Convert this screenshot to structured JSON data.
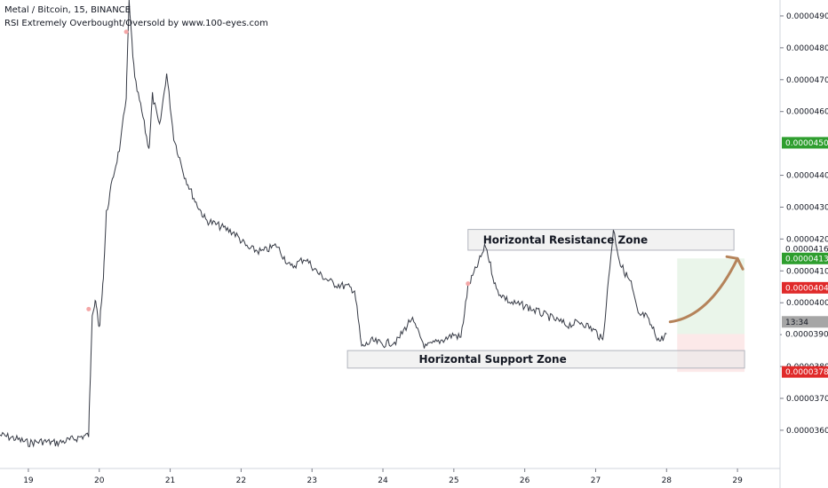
{
  "header": {
    "title": "Metal / Bitcoin, 15, BINANCE",
    "indicator": "RSI Extremely Overbought/Oversold by www.100-eyes.com"
  },
  "chart_data": {
    "type": "line",
    "title": "Metal / Bitcoin, 15, BINANCE",
    "x_ticks": [
      "19",
      "20",
      "21",
      "22",
      "23",
      "24",
      "25",
      "26",
      "27",
      "28",
      "29"
    ],
    "y_ticks": [
      "0.00003600",
      "0.00003700",
      "0.00003800",
      "0.00003900",
      "0.00004000",
      "0.00004100",
      "0.00004200",
      "0.00004300",
      "0.00004400",
      "0.00004600",
      "0.00004700",
      "0.00004800",
      "0.00004900"
    ],
    "ylim": [
      3.48e-05,
      4.95e-05
    ],
    "x": [
      18.6,
      18.8,
      19.0,
      19.2,
      19.4,
      19.6,
      19.75,
      19.85,
      19.9,
      19.95,
      20.0,
      20.05,
      20.1,
      20.2,
      20.3,
      20.38,
      20.42,
      20.5,
      20.6,
      20.7,
      20.75,
      20.85,
      20.95,
      21.05,
      21.2,
      21.35,
      21.5,
      21.7,
      21.9,
      22.1,
      22.3,
      22.5,
      22.7,
      22.9,
      23.1,
      23.3,
      23.5,
      23.6,
      23.7,
      23.85,
      24.0,
      24.2,
      24.4,
      24.6,
      24.8,
      25.0,
      25.1,
      25.2,
      25.3,
      25.45,
      25.6,
      25.8,
      26.0,
      26.2,
      26.4,
      26.6,
      26.8,
      27.0,
      27.1,
      27.25,
      27.35,
      27.5,
      27.6,
      27.7,
      27.8,
      27.9,
      28.0
    ],
    "y": [
      3.585e-05,
      3.575e-05,
      3.56e-05,
      3.565e-05,
      3.56e-05,
      3.57e-05,
      3.58e-05,
      3.585e-05,
      3.97e-05,
      4e-05,
      3.92e-05,
      4.05e-05,
      4.28e-05,
      4.4e-05,
      4.5e-05,
      4.65e-05,
      4.94e-05,
      4.7e-05,
      4.6e-05,
      4.48e-05,
      4.65e-05,
      4.55e-05,
      4.72e-05,
      4.52e-05,
      4.4e-05,
      4.32e-05,
      4.26e-05,
      4.24e-05,
      4.22e-05,
      4.17e-05,
      4.16e-05,
      4.18e-05,
      4.11e-05,
      4.14e-05,
      4.09e-05,
      4.06e-05,
      4.05e-05,
      4.04e-05,
      3.86e-05,
      3.88e-05,
      3.87e-05,
      3.88e-05,
      3.95e-05,
      3.86e-05,
      3.88e-05,
      3.9e-05,
      3.89e-05,
      4.05e-05,
      4.1e-05,
      4.18e-05,
      4.04e-05,
      4e-05,
      3.99e-05,
      3.97e-05,
      3.95e-05,
      3.93e-05,
      3.94e-05,
      3.91e-05,
      3.88e-05,
      4.23e-05,
      4.12e-05,
      4.06e-05,
      3.96e-05,
      3.96e-05,
      3.92e-05,
      3.88e-05,
      3.902e-05
    ],
    "price_tags": [
      {
        "label": "0.00004502",
        "value": 4.502e-05,
        "bg": "#2e9e2e",
        "fg": "#ffffff"
      },
      {
        "label": "0.00004169",
        "value": 4.169e-05,
        "bg": "#ffffff",
        "fg": "#131722"
      },
      {
        "label": "0.00004139",
        "value": 4.139e-05,
        "bg": "#2e9e2e",
        "fg": "#ffffff"
      },
      {
        "label": "0.00004047",
        "value": 4.047e-05,
        "bg": "#e02a2a",
        "fg": "#ffffff"
      },
      {
        "label": "13:34",
        "value": 3.94e-05,
        "bg": "#a6a6a6",
        "fg": "#131722"
      },
      {
        "label": "0.00003902",
        "value": 3.902e-05,
        "bg": "#ffffff",
        "fg": "#131722"
      },
      {
        "label": "0.00003783",
        "value": 3.783e-05,
        "bg": "#e02a2a",
        "fg": "#ffffff"
      }
    ],
    "annotations": [
      {
        "text": "Horizontal Resistance Zone",
        "x_from": 25.2,
        "x_to": 28.95,
        "y_from": 4.165e-05,
        "y_to": 4.23e-05
      },
      {
        "text": "Horizontal Support Zone",
        "x_from": 23.5,
        "x_to": 29.1,
        "y_from": 3.795e-05,
        "y_to": 3.85e-05
      }
    ],
    "position": {
      "x_from": 28.15,
      "x_to": 29.1,
      "target": 4.139e-05,
      "entry": 3.902e-05,
      "stop": 3.783e-05
    },
    "arrow": {
      "x": [
        28.05,
        28.6,
        29.0
      ],
      "y": [
        3.94e-05,
        4.08e-05,
        4.139e-05
      ]
    },
    "line_color": "#363a45",
    "colors": {
      "profit": "#2e9e2e",
      "loss": "#e02a2a",
      "arrow": "#b5835a"
    },
    "rsi_marks": [
      {
        "x": 19.85,
        "y": 3.98e-05
      },
      {
        "x": 20.38,
        "y": 4.85e-05
      },
      {
        "x": 25.2,
        "y": 4.06e-05
      }
    ],
    "grid": false
  }
}
